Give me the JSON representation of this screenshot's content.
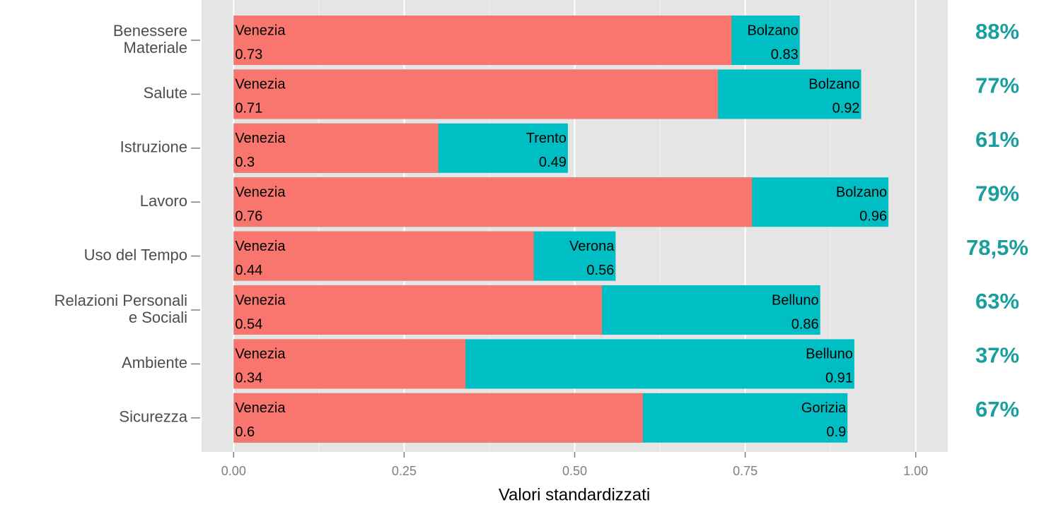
{
  "chart_data": {
    "type": "bar",
    "orientation": "horizontal",
    "x_label": "Valori standardizzati",
    "categories": [
      "Benessere\nMateriale",
      "Salute",
      "Istruzione",
      "Lavoro",
      "Uso del Tempo",
      "Relazioni Personali\ne Sociali",
      "Ambiente",
      "Sicurezza"
    ],
    "series": [
      {
        "name": "Venezia",
        "color": "#f8766d",
        "values": [
          0.73,
          0.71,
          0.3,
          0.76,
          0.44,
          0.54,
          0.34,
          0.6
        ]
      },
      {
        "color": "#00bfc4",
        "labels": [
          "Bolzano",
          "Bolzano",
          "Trento",
          "Bolzano",
          "Verona",
          "Belluno",
          "Belluno",
          "Gorizia"
        ],
        "values": [
          0.83,
          0.92,
          0.49,
          0.96,
          0.56,
          0.86,
          0.91,
          0.9
        ]
      }
    ],
    "annotations": [
      "88%",
      "77%",
      "61%",
      "79%",
      "78,5%",
      "63%",
      "37%",
      "67%"
    ],
    "annotation_color": "#1a9e9e",
    "xlim": [
      -0.047,
      1.047
    ],
    "xticks": [
      {
        "value": 0,
        "label": "0.00"
      },
      {
        "value": 0.25,
        "label": "0.25"
      },
      {
        "value": 0.5,
        "label": "0.50"
      },
      {
        "value": 0.75,
        "label": "0.75"
      },
      {
        "value": 1,
        "label": "1.00"
      }
    ],
    "grid": true
  }
}
